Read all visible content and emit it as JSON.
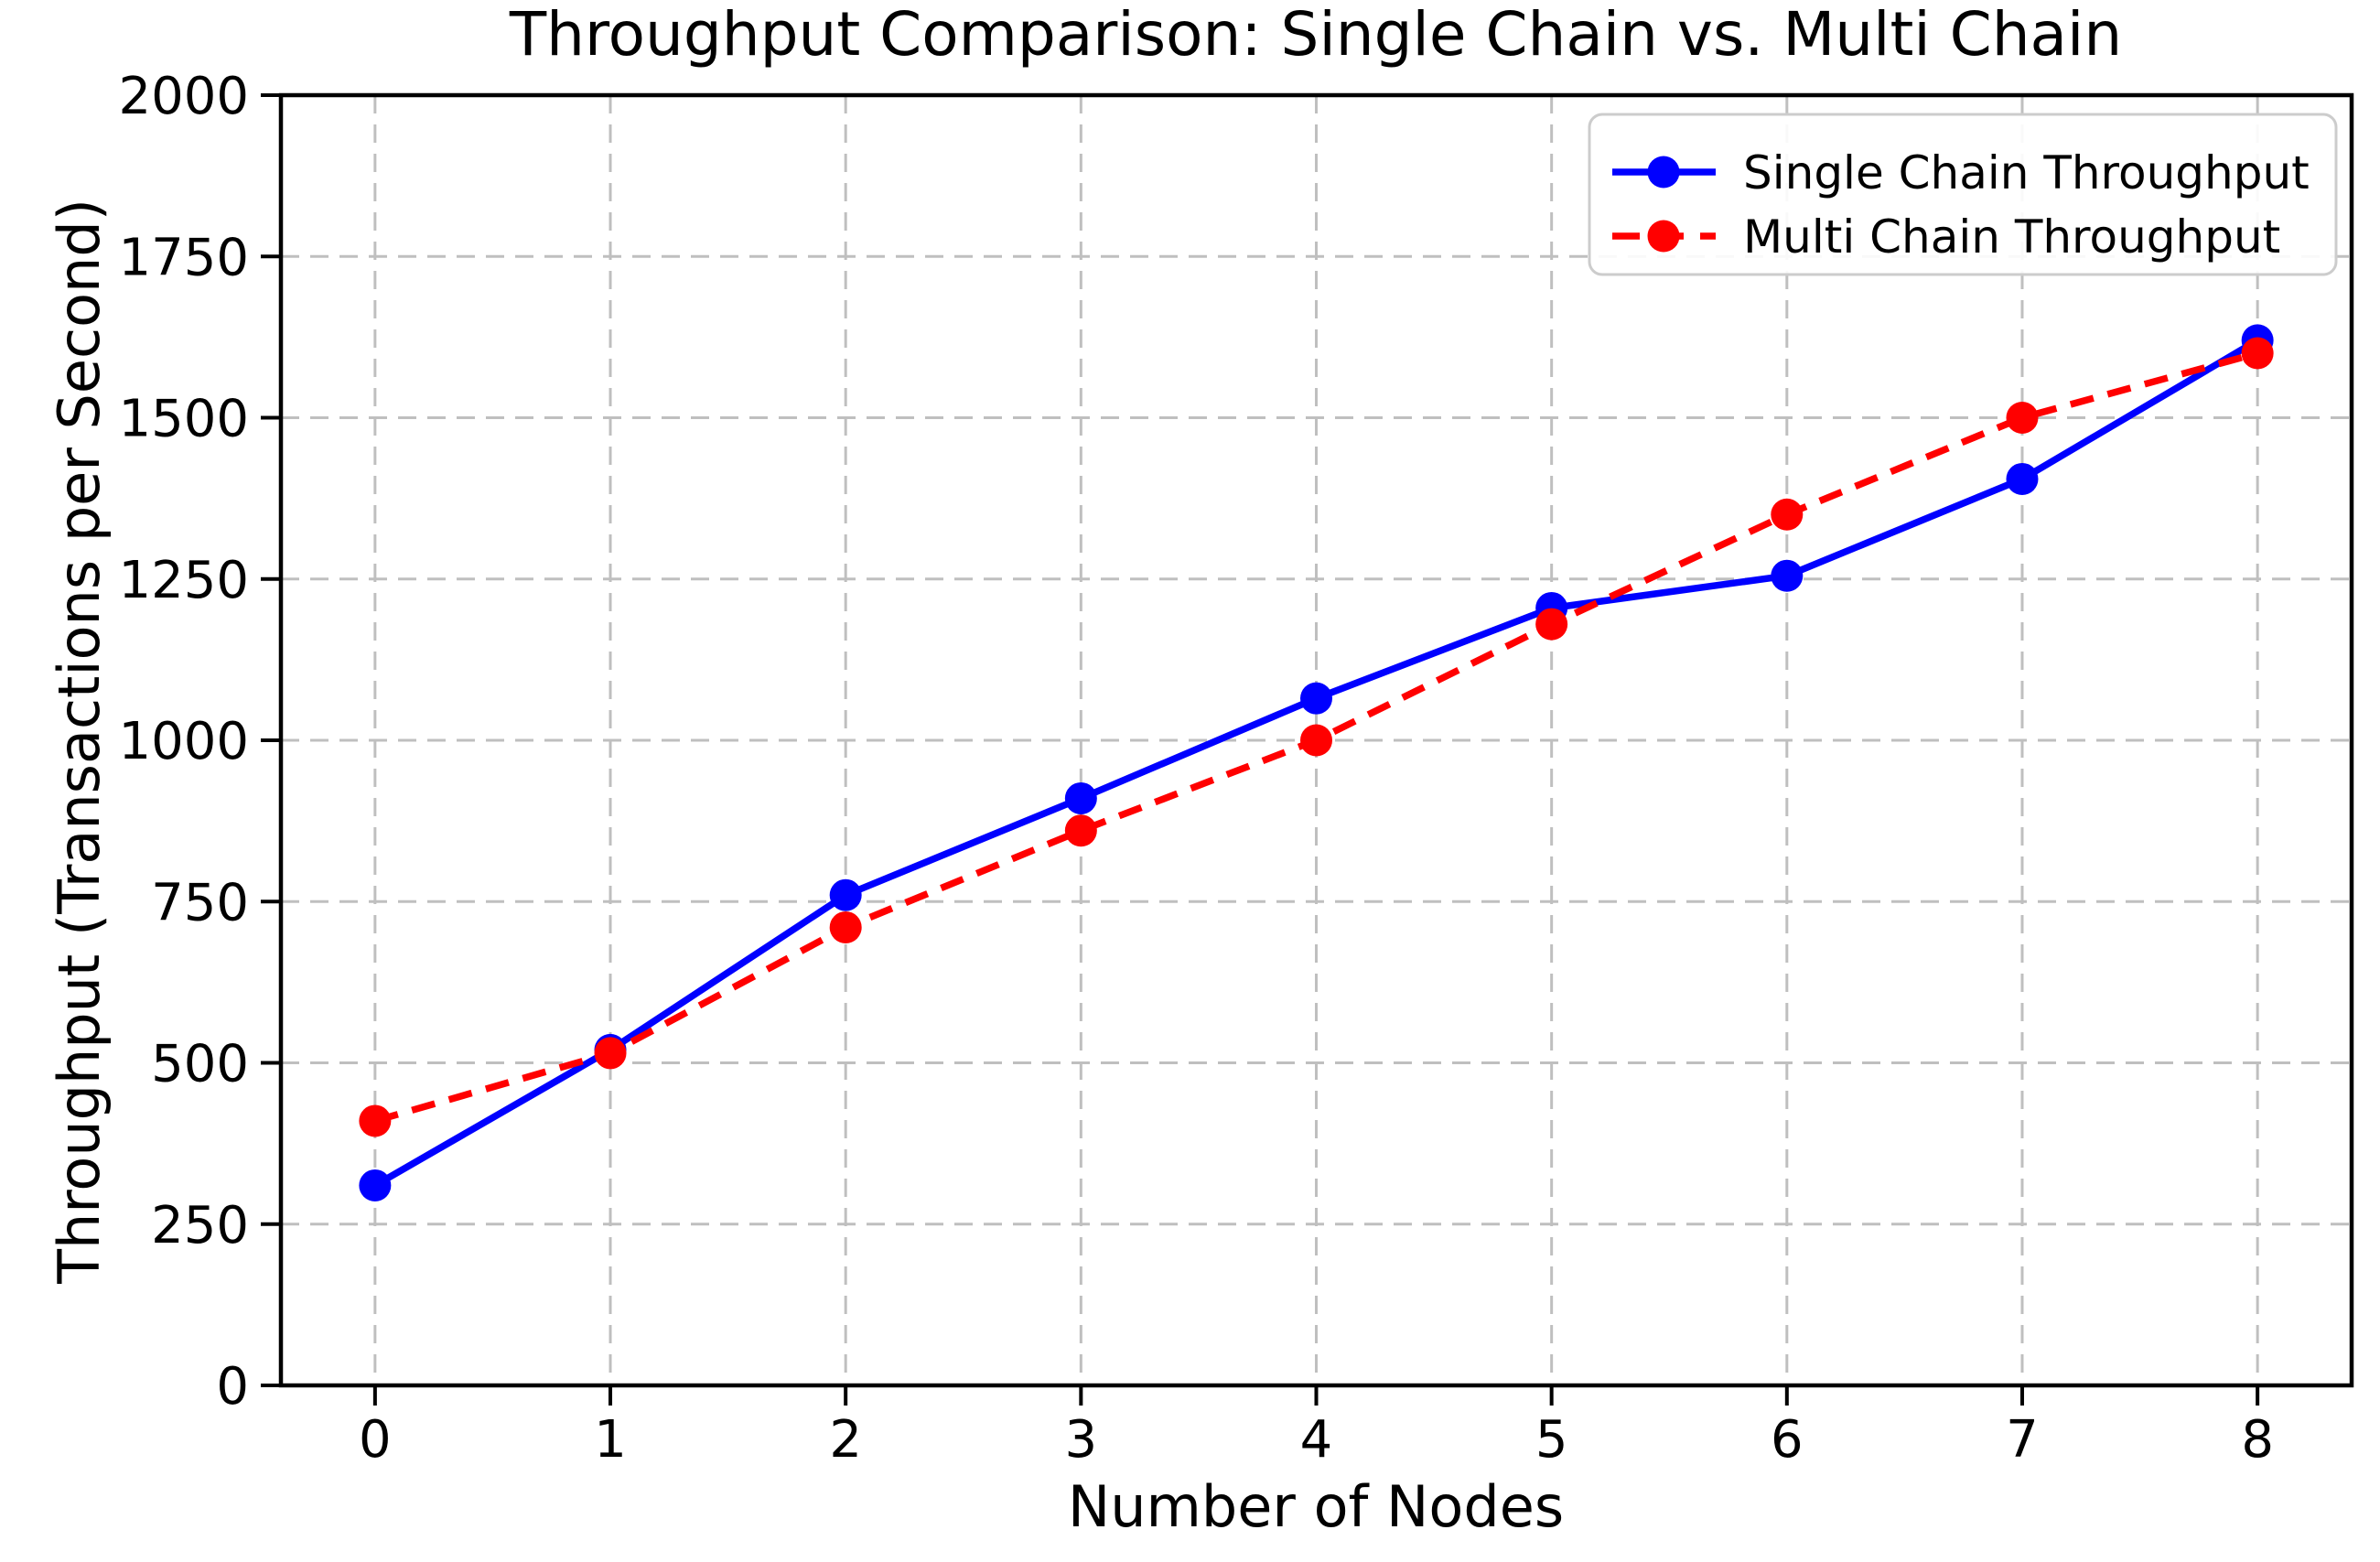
{
  "chart_data": {
    "type": "line",
    "title": "Throughput Comparison: Single Chain vs. Multi Chain",
    "xlabel": "Number of Nodes",
    "ylabel": "Throughput (Transactions per Second)",
    "x": [
      0,
      1,
      2,
      3,
      4,
      5,
      6,
      7,
      8
    ],
    "series": [
      {
        "name": "Single Chain Throughput",
        "color": "#0000ff",
        "line_style": "solid",
        "marker": "circle",
        "values": [
          310,
          520,
          760,
          910,
          1065,
          1205,
          1255,
          1405,
          1620
        ]
      },
      {
        "name": "Multi Chain Throughput",
        "color": "#ff0000",
        "line_style": "dashed",
        "marker": "circle",
        "values": [
          410,
          515,
          710,
          860,
          1000,
          1180,
          1350,
          1500,
          1600
        ]
      }
    ],
    "x_ticks": [
      0,
      1,
      2,
      3,
      4,
      5,
      6,
      7,
      8
    ],
    "y_ticks": [
      0,
      250,
      500,
      750,
      1000,
      1250,
      1500,
      1750,
      2000
    ],
    "xlim": [
      -0.4,
      8.4
    ],
    "ylim": [
      0,
      2000
    ],
    "grid": true,
    "grid_style": "dashed",
    "legend_position": "upper right"
  }
}
